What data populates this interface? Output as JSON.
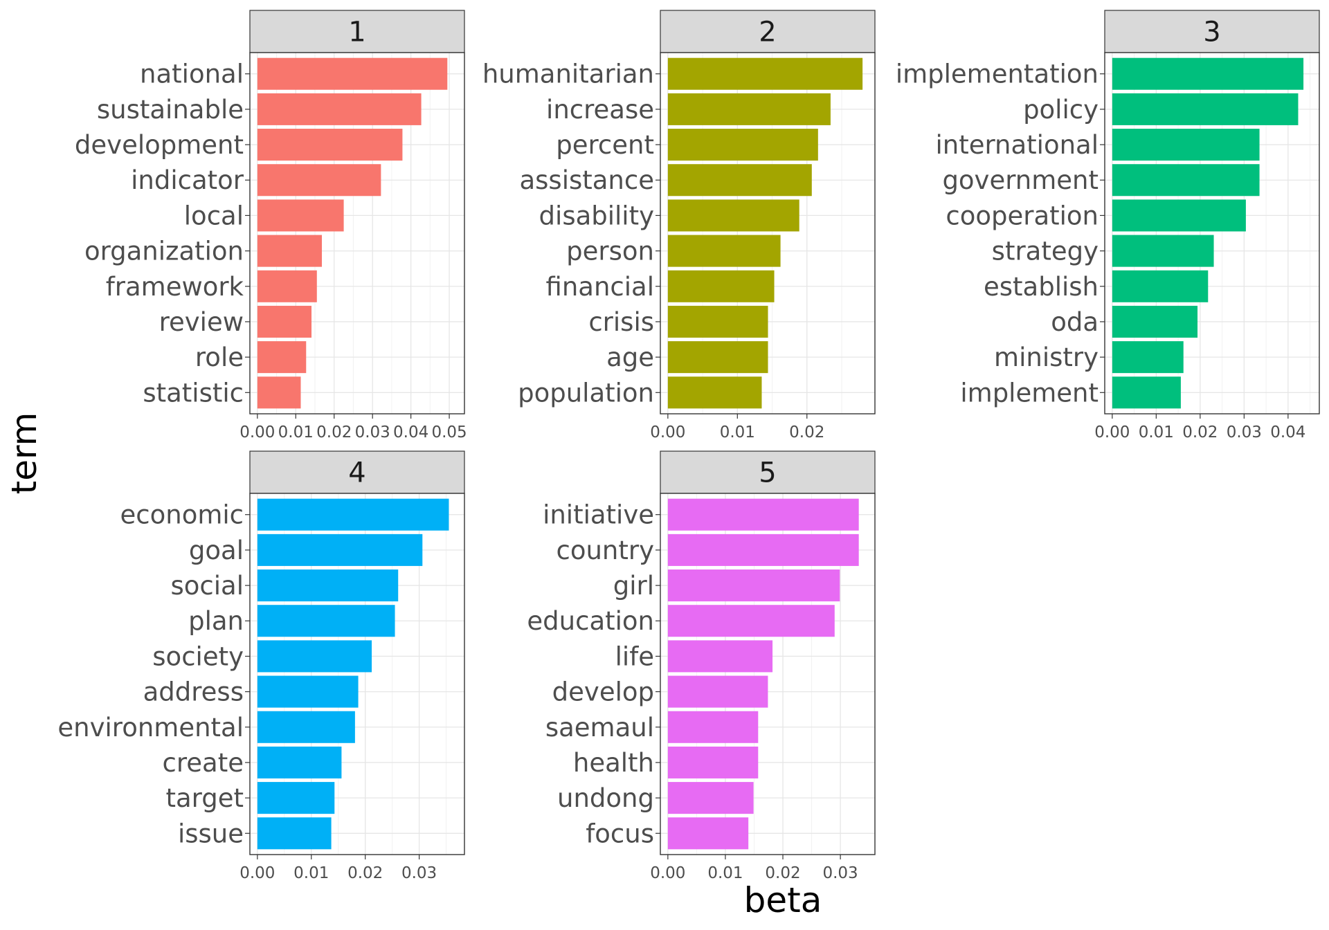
{
  "chart_data": {
    "type": "bar",
    "orientation": "horizontal",
    "facet_layout": "3 columns x 2 rows",
    "xlabel": "beta",
    "ylabel": "term",
    "grid": true,
    "legend": "none",
    "panels": [
      {
        "facet": "1",
        "color": "#F8766D",
        "xlim": [
          0,
          0.052
        ],
        "ticks": [
          0.0,
          0.01,
          0.02,
          0.03,
          0.04,
          0.05
        ],
        "tick_labels": [
          "0.00",
          "0.01",
          "0.02",
          "0.03",
          "0.04",
          "0.05"
        ],
        "categories": [
          "national",
          "sustainable",
          "development",
          "indicator",
          "local",
          "organization",
          "framework",
          "review",
          "role",
          "statistic"
        ],
        "values": [
          0.0495,
          0.0427,
          0.0378,
          0.0322,
          0.0225,
          0.0168,
          0.0155,
          0.0141,
          0.0127,
          0.0113
        ]
      },
      {
        "facet": "2",
        "color": "#A3A500",
        "xlim": [
          0,
          0.0287
        ],
        "ticks": [
          0.0,
          0.01,
          0.02
        ],
        "tick_labels": [
          "0.00",
          "0.01",
          "0.02"
        ],
        "categories": [
          "humanitarian",
          "increase",
          "percent",
          "assistance",
          "disability",
          "person",
          "financial",
          "crisis",
          "age",
          "population"
        ],
        "values": [
          0.028,
          0.0234,
          0.0216,
          0.0207,
          0.0189,
          0.0162,
          0.0153,
          0.0144,
          0.0144,
          0.0135
        ]
      },
      {
        "facet": "3",
        "color": "#00BF7D",
        "xlim": [
          0,
          0.0454
        ],
        "ticks": [
          0.0,
          0.01,
          0.02,
          0.03,
          0.04
        ],
        "tick_labels": [
          "0.00",
          "0.01",
          "0.02",
          "0.03",
          "0.04"
        ],
        "categories": [
          "implementation",
          "policy",
          "international",
          "government",
          "cooperation",
          "strategy",
          "establish",
          "oda",
          "ministry",
          "implement"
        ],
        "values": [
          0.0435,
          0.0423,
          0.0335,
          0.0335,
          0.0304,
          0.0231,
          0.0218,
          0.0194,
          0.0162,
          0.0156
        ]
      },
      {
        "facet": "4",
        "color": "#00B0F6",
        "xlim": [
          0,
          0.037
        ],
        "ticks": [
          0.0,
          0.01,
          0.02,
          0.03
        ],
        "tick_labels": [
          "0.00",
          "0.01",
          "0.02",
          "0.03"
        ],
        "categories": [
          "economic",
          "goal",
          "social",
          "plan",
          "society",
          "address",
          "environmental",
          "create",
          "target",
          "issue"
        ],
        "values": [
          0.0355,
          0.0306,
          0.0261,
          0.0255,
          0.0212,
          0.0187,
          0.0181,
          0.0156,
          0.0143,
          0.0137
        ]
      },
      {
        "facet": "5",
        "color": "#E76BF3",
        "xlim": [
          0,
          0.0347
        ],
        "ticks": [
          0.0,
          0.01,
          0.02,
          0.03
        ],
        "tick_labels": [
          "0.00",
          "0.01",
          "0.02",
          "0.03"
        ],
        "categories": [
          "initiative",
          "country",
          "girl",
          "education",
          "life",
          "develop",
          "saemaul",
          "health",
          "undong",
          "focus"
        ],
        "values": [
          0.0332,
          0.0332,
          0.0299,
          0.029,
          0.0182,
          0.0174,
          0.0157,
          0.0157,
          0.0149,
          0.014
        ]
      }
    ]
  }
}
